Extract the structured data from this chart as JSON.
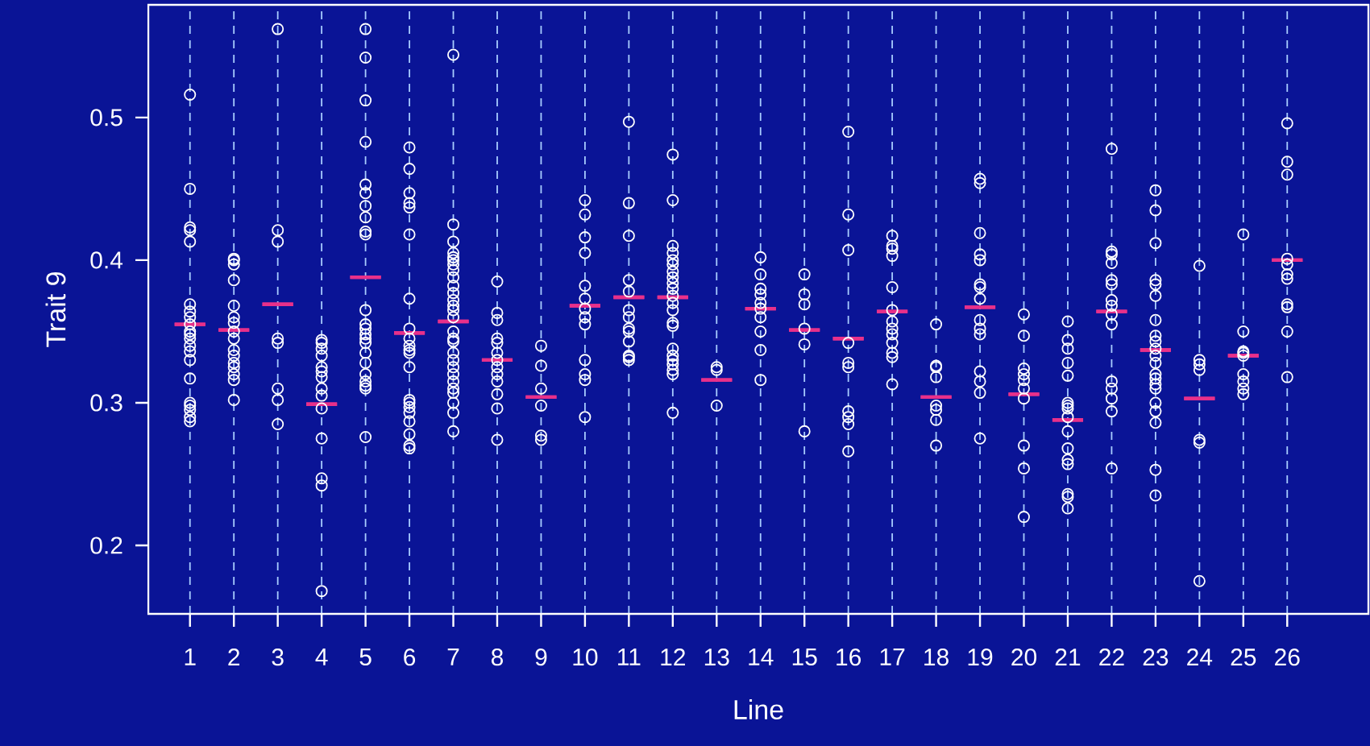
{
  "chart_data": {
    "type": "scatter",
    "xlabel": "Line",
    "ylabel": "Trait 9",
    "categories": [
      "1",
      "2",
      "3",
      "4",
      "5",
      "6",
      "7",
      "8",
      "9",
      "10",
      "11",
      "12",
      "13",
      "14",
      "15",
      "16",
      "17",
      "18",
      "19",
      "20",
      "21",
      "22",
      "23",
      "24",
      "25",
      "26"
    ],
    "ylim": [
      0.152,
      0.579
    ],
    "yticks": [
      0.2,
      0.3,
      0.4,
      0.5
    ],
    "grid": "x",
    "series": [
      {
        "marker": "circle",
        "color": "#ffffff",
        "x": [
          "1",
          "1",
          "1",
          "1",
          "1",
          "1",
          "1",
          "1",
          "1",
          "1",
          "1",
          "1",
          "1",
          "1",
          "1",
          "1",
          "1",
          "1",
          "1",
          "1",
          "1",
          "2",
          "2",
          "2",
          "2",
          "2",
          "2",
          "2",
          "2",
          "2",
          "2",
          "2",
          "2",
          "2",
          "2",
          "2",
          "2",
          "3",
          "3",
          "3",
          "3",
          "3",
          "3",
          "3",
          "3",
          "4",
          "4",
          "4",
          "4",
          "4",
          "4",
          "4",
          "4",
          "4",
          "4",
          "4",
          "4",
          "4",
          "4",
          "5",
          "5",
          "5",
          "5",
          "5",
          "5",
          "5",
          "5",
          "5",
          "5",
          "5",
          "5",
          "5",
          "5",
          "5",
          "5",
          "5",
          "5",
          "5",
          "5",
          "5",
          "5",
          "5",
          "6",
          "6",
          "6",
          "6",
          "6",
          "6",
          "6",
          "6",
          "6",
          "6",
          "6",
          "6",
          "6",
          "6",
          "6",
          "6",
          "6",
          "6",
          "6",
          "6",
          "6",
          "7",
          "7",
          "7",
          "7",
          "7",
          "7",
          "7",
          "7",
          "7",
          "7",
          "7",
          "7",
          "7",
          "7",
          "7",
          "7",
          "7",
          "7",
          "7",
          "7",
          "7",
          "7",
          "7",
          "7",
          "7",
          "7",
          "7",
          "7",
          "8",
          "8",
          "8",
          "8",
          "8",
          "8",
          "8",
          "8",
          "8",
          "8",
          "8",
          "8",
          "8",
          "9",
          "9",
          "9",
          "9",
          "9",
          "9",
          "10",
          "10",
          "10",
          "10",
          "10",
          "10",
          "10",
          "10",
          "10",
          "10",
          "10",
          "10",
          "10",
          "11",
          "11",
          "11",
          "11",
          "11",
          "11",
          "11",
          "11",
          "11",
          "11",
          "11",
          "11",
          "11",
          "12",
          "12",
          "12",
          "12",
          "12",
          "12",
          "12",
          "12",
          "12",
          "12",
          "12",
          "12",
          "12",
          "12",
          "12",
          "12",
          "12",
          "12",
          "12",
          "12",
          "12",
          "12",
          "13",
          "13",
          "13",
          "14",
          "14",
          "14",
          "14",
          "14",
          "14",
          "14",
          "14",
          "14",
          "14",
          "15",
          "15",
          "15",
          "15",
          "15",
          "15",
          "16",
          "16",
          "16",
          "16",
          "16",
          "16",
          "16",
          "16",
          "16",
          "16",
          "17",
          "17",
          "17",
          "17",
          "17",
          "17",
          "17",
          "17",
          "17",
          "17",
          "17",
          "17",
          "17",
          "18",
          "18",
          "18",
          "18",
          "18",
          "18",
          "18",
          "18",
          "19",
          "19",
          "19",
          "19",
          "19",
          "19",
          "19",
          "19",
          "19",
          "19",
          "19",
          "19",
          "19",
          "19",
          "19",
          "20",
          "20",
          "20",
          "20",
          "20",
          "20",
          "20",
          "20",
          "20",
          "20",
          "21",
          "21",
          "21",
          "21",
          "21",
          "21",
          "21",
          "21",
          "21",
          "21",
          "21",
          "21",
          "21",
          "21",
          "21",
          "21",
          "22",
          "22",
          "22",
          "22",
          "22",
          "22",
          "22",
          "22",
          "22",
          "22",
          "22",
          "22",
          "22",
          "22",
          "22",
          "23",
          "23",
          "23",
          "23",
          "23",
          "23",
          "23",
          "23",
          "23",
          "23",
          "23",
          "23",
          "23",
          "23",
          "23",
          "23",
          "23",
          "23",
          "23",
          "23",
          "23",
          "24",
          "24",
          "24",
          "24",
          "24",
          "24",
          "24",
          "25",
          "25",
          "25",
          "25",
          "25",
          "25",
          "25",
          "25",
          "25",
          "26",
          "26",
          "26",
          "26",
          "26",
          "26",
          "26",
          "26",
          "26",
          "26",
          "26"
        ],
        "values": [
          0.516,
          0.45,
          0.423,
          0.421,
          0.413,
          0.369,
          0.364,
          0.36,
          0.355,
          0.35,
          0.348,
          0.345,
          0.34,
          0.336,
          0.33,
          0.317,
          0.3,
          0.298,
          0.295,
          0.29,
          0.287,
          0.401,
          0.4,
          0.397,
          0.386,
          0.368,
          0.36,
          0.356,
          0.35,
          0.345,
          0.337,
          0.333,
          0.328,
          0.325,
          0.32,
          0.316,
          0.302,
          0.562,
          0.421,
          0.413,
          0.345,
          0.342,
          0.31,
          0.302,
          0.285,
          0.344,
          0.342,
          0.338,
          0.333,
          0.325,
          0.322,
          0.318,
          0.31,
          0.305,
          0.296,
          0.275,
          0.247,
          0.242,
          0.168,
          0.562,
          0.542,
          0.512,
          0.483,
          0.453,
          0.447,
          0.438,
          0.43,
          0.42,
          0.418,
          0.365,
          0.355,
          0.352,
          0.348,
          0.345,
          0.342,
          0.335,
          0.328,
          0.32,
          0.315,
          0.312,
          0.31,
          0.276,
          0.479,
          0.464,
          0.447,
          0.44,
          0.437,
          0.418,
          0.373,
          0.352,
          0.345,
          0.34,
          0.337,
          0.335,
          0.325,
          0.302,
          0.3,
          0.297,
          0.293,
          0.287,
          0.278,
          0.27,
          0.268,
          0.544,
          0.425,
          0.413,
          0.405,
          0.402,
          0.4,
          0.397,
          0.393,
          0.388,
          0.382,
          0.377,
          0.372,
          0.368,
          0.365,
          0.36,
          0.35,
          0.345,
          0.343,
          0.335,
          0.33,
          0.325,
          0.32,
          0.315,
          0.31,
          0.307,
          0.3,
          0.293,
          0.28,
          0.385,
          0.363,
          0.358,
          0.345,
          0.342,
          0.335,
          0.33,
          0.325,
          0.32,
          0.315,
          0.306,
          0.296,
          0.274,
          0.34,
          0.326,
          0.31,
          0.298,
          0.277,
          0.274,
          0.442,
          0.432,
          0.416,
          0.405,
          0.382,
          0.373,
          0.366,
          0.36,
          0.355,
          0.33,
          0.32,
          0.316,
          0.29,
          0.497,
          0.44,
          0.417,
          0.386,
          0.378,
          0.365,
          0.36,
          0.352,
          0.35,
          0.343,
          0.333,
          0.332,
          0.33,
          0.474,
          0.442,
          0.41,
          0.405,
          0.4,
          0.397,
          0.392,
          0.388,
          0.384,
          0.38,
          0.375,
          0.37,
          0.365,
          0.356,
          0.354,
          0.338,
          0.333,
          0.33,
          0.327,
          0.323,
          0.32,
          0.293,
          0.325,
          0.323,
          0.298,
          0.402,
          0.39,
          0.38,
          0.376,
          0.37,
          0.366,
          0.36,
          0.35,
          0.337,
          0.316,
          0.39,
          0.376,
          0.369,
          0.352,
          0.341,
          0.28,
          0.49,
          0.432,
          0.407,
          0.342,
          0.328,
          0.325,
          0.294,
          0.29,
          0.285,
          0.266,
          0.417,
          0.41,
          0.408,
          0.403,
          0.381,
          0.365,
          0.357,
          0.352,
          0.348,
          0.342,
          0.335,
          0.332,
          0.313,
          0.355,
          0.326,
          0.325,
          0.318,
          0.298,
          0.295,
          0.288,
          0.27,
          0.457,
          0.454,
          0.419,
          0.404,
          0.4,
          0.383,
          0.381,
          0.373,
          0.358,
          0.352,
          0.348,
          0.322,
          0.315,
          0.307,
          0.275,
          0.362,
          0.347,
          0.324,
          0.32,
          0.316,
          0.31,
          0.303,
          0.27,
          0.254,
          0.22,
          0.357,
          0.344,
          0.338,
          0.328,
          0.319,
          0.3,
          0.298,
          0.296,
          0.29,
          0.28,
          0.268,
          0.26,
          0.257,
          0.236,
          0.234,
          0.226,
          0.478,
          0.406,
          0.404,
          0.398,
          0.386,
          0.383,
          0.372,
          0.368,
          0.362,
          0.355,
          0.315,
          0.31,
          0.303,
          0.294,
          0.254,
          0.449,
          0.435,
          0.412,
          0.386,
          0.383,
          0.375,
          0.358,
          0.347,
          0.343,
          0.338,
          0.333,
          0.328,
          0.32,
          0.317,
          0.313,
          0.31,
          0.3,
          0.294,
          0.286,
          0.253,
          0.235,
          0.396,
          0.33,
          0.327,
          0.323,
          0.274,
          0.272,
          0.175,
          0.418,
          0.35,
          0.336,
          0.335,
          0.333,
          0.32,
          0.315,
          0.31,
          0.306,
          0.496,
          0.469,
          0.46,
          0.401,
          0.397,
          0.39,
          0.387,
          0.369,
          0.367,
          0.35,
          0.318
        ]
      },
      {
        "type": "box",
        "color": "#e8308a",
        "boxes": [
          {
            "low": 0.355,
            "q1": 0.355,
            "median": 0.355,
            "q3": 0.355,
            "high": 0.355
          },
          {
            "low": 0.351,
            "q1": 0.351,
            "median": 0.351,
            "q3": 0.351,
            "high": 0.351
          },
          {
            "low": 0.369,
            "q1": 0.369,
            "median": 0.369,
            "q3": 0.369,
            "high": 0.369
          },
          {
            "low": 0.299,
            "q1": 0.299,
            "median": 0.299,
            "q3": 0.299,
            "high": 0.299
          },
          {
            "low": 0.388,
            "q1": 0.388,
            "median": 0.388,
            "q3": 0.388,
            "high": 0.388
          },
          {
            "low": 0.349,
            "q1": 0.349,
            "median": 0.349,
            "q3": 0.349,
            "high": 0.349
          },
          {
            "low": 0.357,
            "q1": 0.357,
            "median": 0.357,
            "q3": 0.357,
            "high": 0.357
          },
          {
            "low": 0.33,
            "q1": 0.33,
            "median": 0.33,
            "q3": 0.33,
            "high": 0.33
          },
          {
            "low": 0.304,
            "q1": 0.304,
            "median": 0.304,
            "q3": 0.304,
            "high": 0.304
          },
          {
            "low": 0.368,
            "q1": 0.368,
            "median": 0.368,
            "q3": 0.368,
            "high": 0.368
          },
          {
            "low": 0.374,
            "q1": 0.374,
            "median": 0.374,
            "q3": 0.374,
            "high": 0.374
          },
          {
            "low": 0.374,
            "q1": 0.374,
            "median": 0.374,
            "q3": 0.374,
            "high": 0.374
          },
          {
            "low": 0.316,
            "q1": 0.316,
            "median": 0.316,
            "q3": 0.316,
            "high": 0.316
          },
          {
            "low": 0.366,
            "q1": 0.366,
            "median": 0.366,
            "q3": 0.366,
            "high": 0.366
          },
          {
            "low": 0.351,
            "q1": 0.351,
            "median": 0.351,
            "q3": 0.351,
            "high": 0.351
          },
          {
            "low": 0.345,
            "q1": 0.345,
            "median": 0.345,
            "q3": 0.345,
            "high": 0.345
          },
          {
            "low": 0.364,
            "q1": 0.364,
            "median": 0.364,
            "q3": 0.364,
            "high": 0.364
          },
          {
            "low": 0.304,
            "q1": 0.304,
            "median": 0.304,
            "q3": 0.304,
            "high": 0.304
          },
          {
            "low": 0.367,
            "q1": 0.367,
            "median": 0.367,
            "q3": 0.367,
            "high": 0.367
          },
          {
            "low": 0.306,
            "q1": 0.306,
            "median": 0.306,
            "q3": 0.306,
            "high": 0.306
          },
          {
            "low": 0.288,
            "q1": 0.288,
            "median": 0.288,
            "q3": 0.288,
            "high": 0.288
          },
          {
            "low": 0.364,
            "q1": 0.364,
            "median": 0.364,
            "q3": 0.364,
            "high": 0.364
          },
          {
            "low": 0.337,
            "q1": 0.337,
            "median": 0.337,
            "q3": 0.337,
            "high": 0.337
          },
          {
            "low": 0.303,
            "q1": 0.303,
            "median": 0.303,
            "q3": 0.303,
            "high": 0.303
          },
          {
            "low": 0.333,
            "q1": 0.333,
            "median": 0.333,
            "q3": 0.333,
            "high": 0.333
          },
          {
            "low": 0.4,
            "q1": 0.4,
            "median": 0.4,
            "q3": 0.4,
            "high": 0.4
          }
        ]
      }
    ]
  }
}
